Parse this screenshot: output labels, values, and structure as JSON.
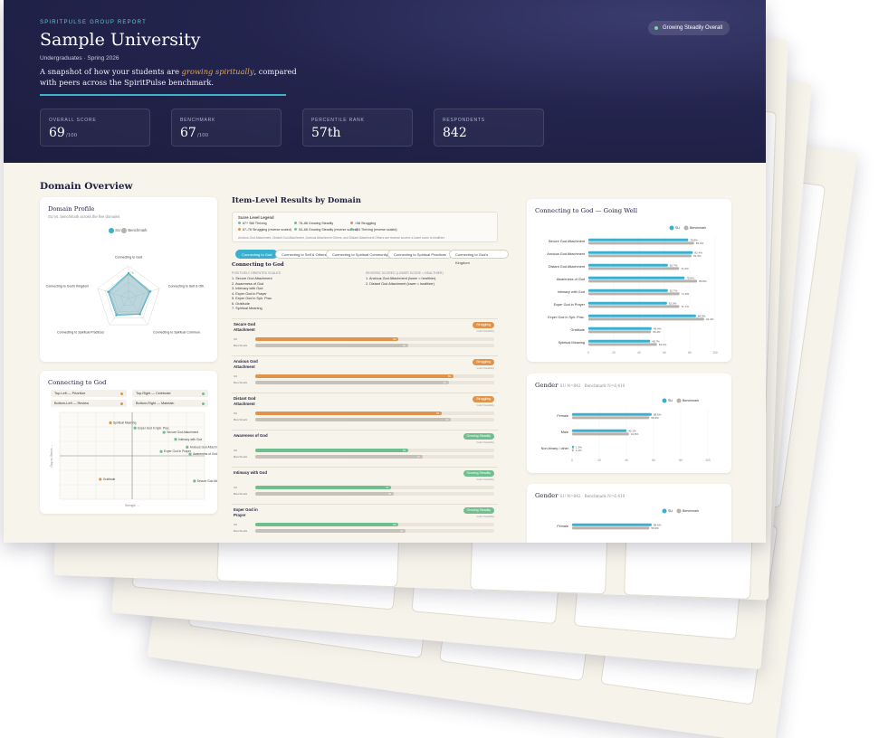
{
  "page": {
    "eyebrow": "SpiritPulse Group Report",
    "title": "Sample University",
    "subtitle": "Undergraduates · Spring 2026",
    "tagline_pre": "A snapshot of how your students are ",
    "tagline_em": "growing spiritually",
    "tagline_post": ", compared with peers across the SpiritPulse benchmark.",
    "status_badge": "Growing Steadily Overall",
    "stats": [
      {
        "label": "Overall Score",
        "value": "69",
        "suffix": "/100"
      },
      {
        "label": "Benchmark",
        "value": "67",
        "suffix": "/100"
      },
      {
        "label": "Percentile Rank",
        "value": "57th",
        "suffix": ""
      },
      {
        "label": "Respondents",
        "value": "842",
        "suffix": ""
      }
    ]
  },
  "domain_overview": {
    "title": "Domain Overview",
    "profile": {
      "title": "Domain Profile",
      "subtitle": "SU vs. benchmark across the five domains",
      "legend": [
        "SU",
        "Benchmark"
      ],
      "axes": [
        "Connecting to God",
        "Connecting to Self & Oth.",
        "Connecting to Spiritual Commun.",
        "Connecting to Spiritual Practices",
        "Connecting to God's Kingdom"
      ],
      "tick": "75",
      "su": [
        78,
        70,
        60,
        64,
        66
      ],
      "bench": [
        74,
        66,
        58,
        60,
        62
      ]
    },
    "quadrant": {
      "title": "Connecting to God",
      "legend": [
        {
          "label": "Top-Left — Prioritize",
          "color": "#e0934a"
        },
        {
          "label": "Top-Right — Celebrate",
          "color": "#6fbf8e"
        },
        {
          "label": "Bottom-Left — Review",
          "color": "#e0934a"
        },
        {
          "label": "Bottom-Right — Maintain",
          "color": "#6fbf8e"
        }
      ],
      "ylabel": "Gap vs. Bench →",
      "xlabel": "Strength →",
      "points": [
        {
          "label": "Spiritual Meaning",
          "x": 0.35,
          "y": 0.88,
          "c": "#e0934a"
        },
        {
          "label": "Exper God in Spir. Prac.",
          "x": 0.52,
          "y": 0.82,
          "c": "#6fbf8e"
        },
        {
          "label": "Secure God Attachment",
          "x": 0.72,
          "y": 0.77,
          "c": "#6fbf8e"
        },
        {
          "label": "Intimacy with God",
          "x": 0.8,
          "y": 0.69,
          "c": "#6fbf8e"
        },
        {
          "label": "Anxious God Attachment",
          "x": 0.88,
          "y": 0.6,
          "c": "#6fbf8e"
        },
        {
          "label": "Exper God in Prayer",
          "x": 0.7,
          "y": 0.55,
          "c": "#6fbf8e"
        },
        {
          "label": "Awareness of God",
          "x": 0.9,
          "y": 0.52,
          "c": "#6fbf8e"
        },
        {
          "label": "Gratitude",
          "x": 0.28,
          "y": 0.23,
          "c": "#e0934a"
        },
        {
          "label": "Secure God Attachment",
          "x": 0.93,
          "y": 0.21,
          "c": "#6fbf8e"
        }
      ]
    }
  },
  "item_level": {
    "title": "Item-Level Results by Domain",
    "legend_title": "Score Level Legend",
    "legend": [
      {
        "label": "87+ Still Thriving",
        "color": "#6fbf8e"
      },
      {
        "label": "78–86 Growing Steadily",
        "color": "#6fbf8e"
      },
      {
        "label": "<58 Struggling",
        "color": "#e0934a"
      },
      {
        "label": "67–76 Struggling (reverse scaled)",
        "color": "#e0934a"
      },
      {
        "label": "54–66 Growing Steadily (reverse scaled)",
        "color": "#6fbf8e"
      },
      {
        "label": "<54 Thriving (reverse scaled)",
        "color": "#6fbf8e"
      }
    ],
    "legend_note": "Anxious God Attachment, Distant God Attachment, Anxious Attachment Others, and Distant Attachment Others are reverse scored: a lower score is healthier.",
    "tabs": [
      "Connecting to God",
      "Connecting to Self & Others",
      "Connecting to Spiritual Community",
      "Connecting to Spiritual Practices",
      "Connecting to God's Kingdom"
    ],
    "domain": "Connecting to God",
    "positive_head": "Positively Oriented Scales",
    "positive": [
      "1. Secure God Attachment",
      "2. Awareness of God",
      "3. Intimacy with God",
      "4. Exper God in Prayer",
      "5. Exper God in Spir. Prac.",
      "6. Gratitude",
      "7. Spiritual Meaning"
    ],
    "reverse_head": "Reverse Scored (Lower Score = Healthier)",
    "reverse": [
      "1. Anxious God Attachment (lower = healthier)",
      "2. Distant God Attachment (lower = healthier)"
    ],
    "items": [
      {
        "name": "Secure God Attachment",
        "tag": "Struggling",
        "tag_color": "#e0934a",
        "su": 60,
        "bench": 64
      },
      {
        "name": "Anxious God Attachment",
        "tag": "Struggling",
        "tag_color": "#e0934a",
        "su": 83,
        "bench": 81
      },
      {
        "name": "Distant God Attachment",
        "tag": "Struggling",
        "tag_color": "#e0934a",
        "su": 78,
        "bench": 82
      },
      {
        "name": "Awareness of God",
        "tag": "Growing Steadily",
        "tag_color": "#6fbf8e",
        "su": 64,
        "bench": 70
      },
      {
        "name": "Intimacy with God",
        "tag": "Growing Steadily",
        "tag_color": "#6fbf8e",
        "su": 57,
        "bench": 58
      },
      {
        "name": "Exper God in Prayer",
        "tag": "Growing Steadily",
        "tag_color": "#6fbf8e",
        "su": 60,
        "bench": 63
      }
    ],
    "su_label": "SU",
    "bench_label": "Benchmark",
    "tag_sub": "Gold Notability"
  },
  "going_well": {
    "title": "Connecting to God — Going Well",
    "legend": [
      "SU",
      "Benchmark"
    ],
    "chart_data": {
      "type": "bar",
      "categories": [
        "Secure God Attachment",
        "Anxious God Attachment",
        "Distant God Attachment",
        "Awareness of God",
        "Intimacy with God",
        "Exper God in Prayer",
        "Exper God in Spir. Prac.",
        "Gratitude",
        "Spiritual Meaning"
      ],
      "series": [
        {
          "name": "SU",
          "values": [
            78.8,
            82.4,
            62.7,
            75.9,
            62.7,
            62.0,
            84.9,
            49.9,
            48.7
          ],
          "labels": [
            "78.8%",
            "82.4%",
            "62.7%",
            "75.9%",
            "62.7%",
            "62.0%",
            "84.9%",
            "49.9%",
            "48.7%"
          ]
        },
        {
          "name": "Benchmark",
          "values": [
            83.4,
            81.5,
            71.6,
            85.8,
            71.9,
            71.7,
            91.4,
            49.4,
            54.1
          ],
          "labels": [
            "83.4%",
            "81.5%",
            "71.6%",
            "85.8%",
            "71.9%",
            "71.7%",
            "91.4%",
            "49.4%",
            "54.1%"
          ]
        }
      ],
      "xlim": [
        0,
        100
      ],
      "ticks": [
        "0",
        "20",
        "40",
        "60",
        "80",
        "100"
      ]
    }
  },
  "gender": {
    "title": "Gender",
    "subtitle": "SU N=842 · Benchmark N=6,410",
    "legend": [
      "SU",
      "Benchmark"
    ],
    "chart_data": {
      "type": "bar",
      "categories": [
        "Female",
        "Male",
        "Non-binary / other"
      ],
      "series": [
        {
          "name": "SU",
          "values": [
            58.6,
            40.1,
            1.3
          ],
          "labels": [
            "58.6%",
            "40.1%",
            "1.3%"
          ]
        },
        {
          "name": "Benchmark",
          "values": [
            56.9,
            41.9,
            1.2
          ],
          "labels": [
            "56.9%",
            "41.9%",
            "1.2%"
          ]
        }
      ],
      "xlim": [
        0,
        100
      ],
      "ticks": [
        "0",
        "20",
        "40",
        "60",
        "80",
        "100"
      ]
    }
  },
  "gender2": {
    "title": "Gender",
    "subtitle": "SU N=842 · Benchmark N=6,410",
    "legend": [
      "SU",
      "Benchmark"
    ],
    "chart_data": {
      "type": "bar",
      "categories": [
        "Female"
      ],
      "series": [
        {
          "name": "SU",
          "values": [
            58.6
          ],
          "labels": [
            "58.6%"
          ]
        },
        {
          "name": "Benchmark",
          "values": [
            56.9
          ],
          "labels": [
            "56.9%"
          ]
        }
      ],
      "xlim": [
        0,
        100
      ]
    }
  },
  "colors": {
    "su": "#3ab0d0",
    "bench": "#b7b3ac",
    "orange": "#e0934a",
    "green": "#6fbf8e",
    "navy": "#23244d"
  }
}
